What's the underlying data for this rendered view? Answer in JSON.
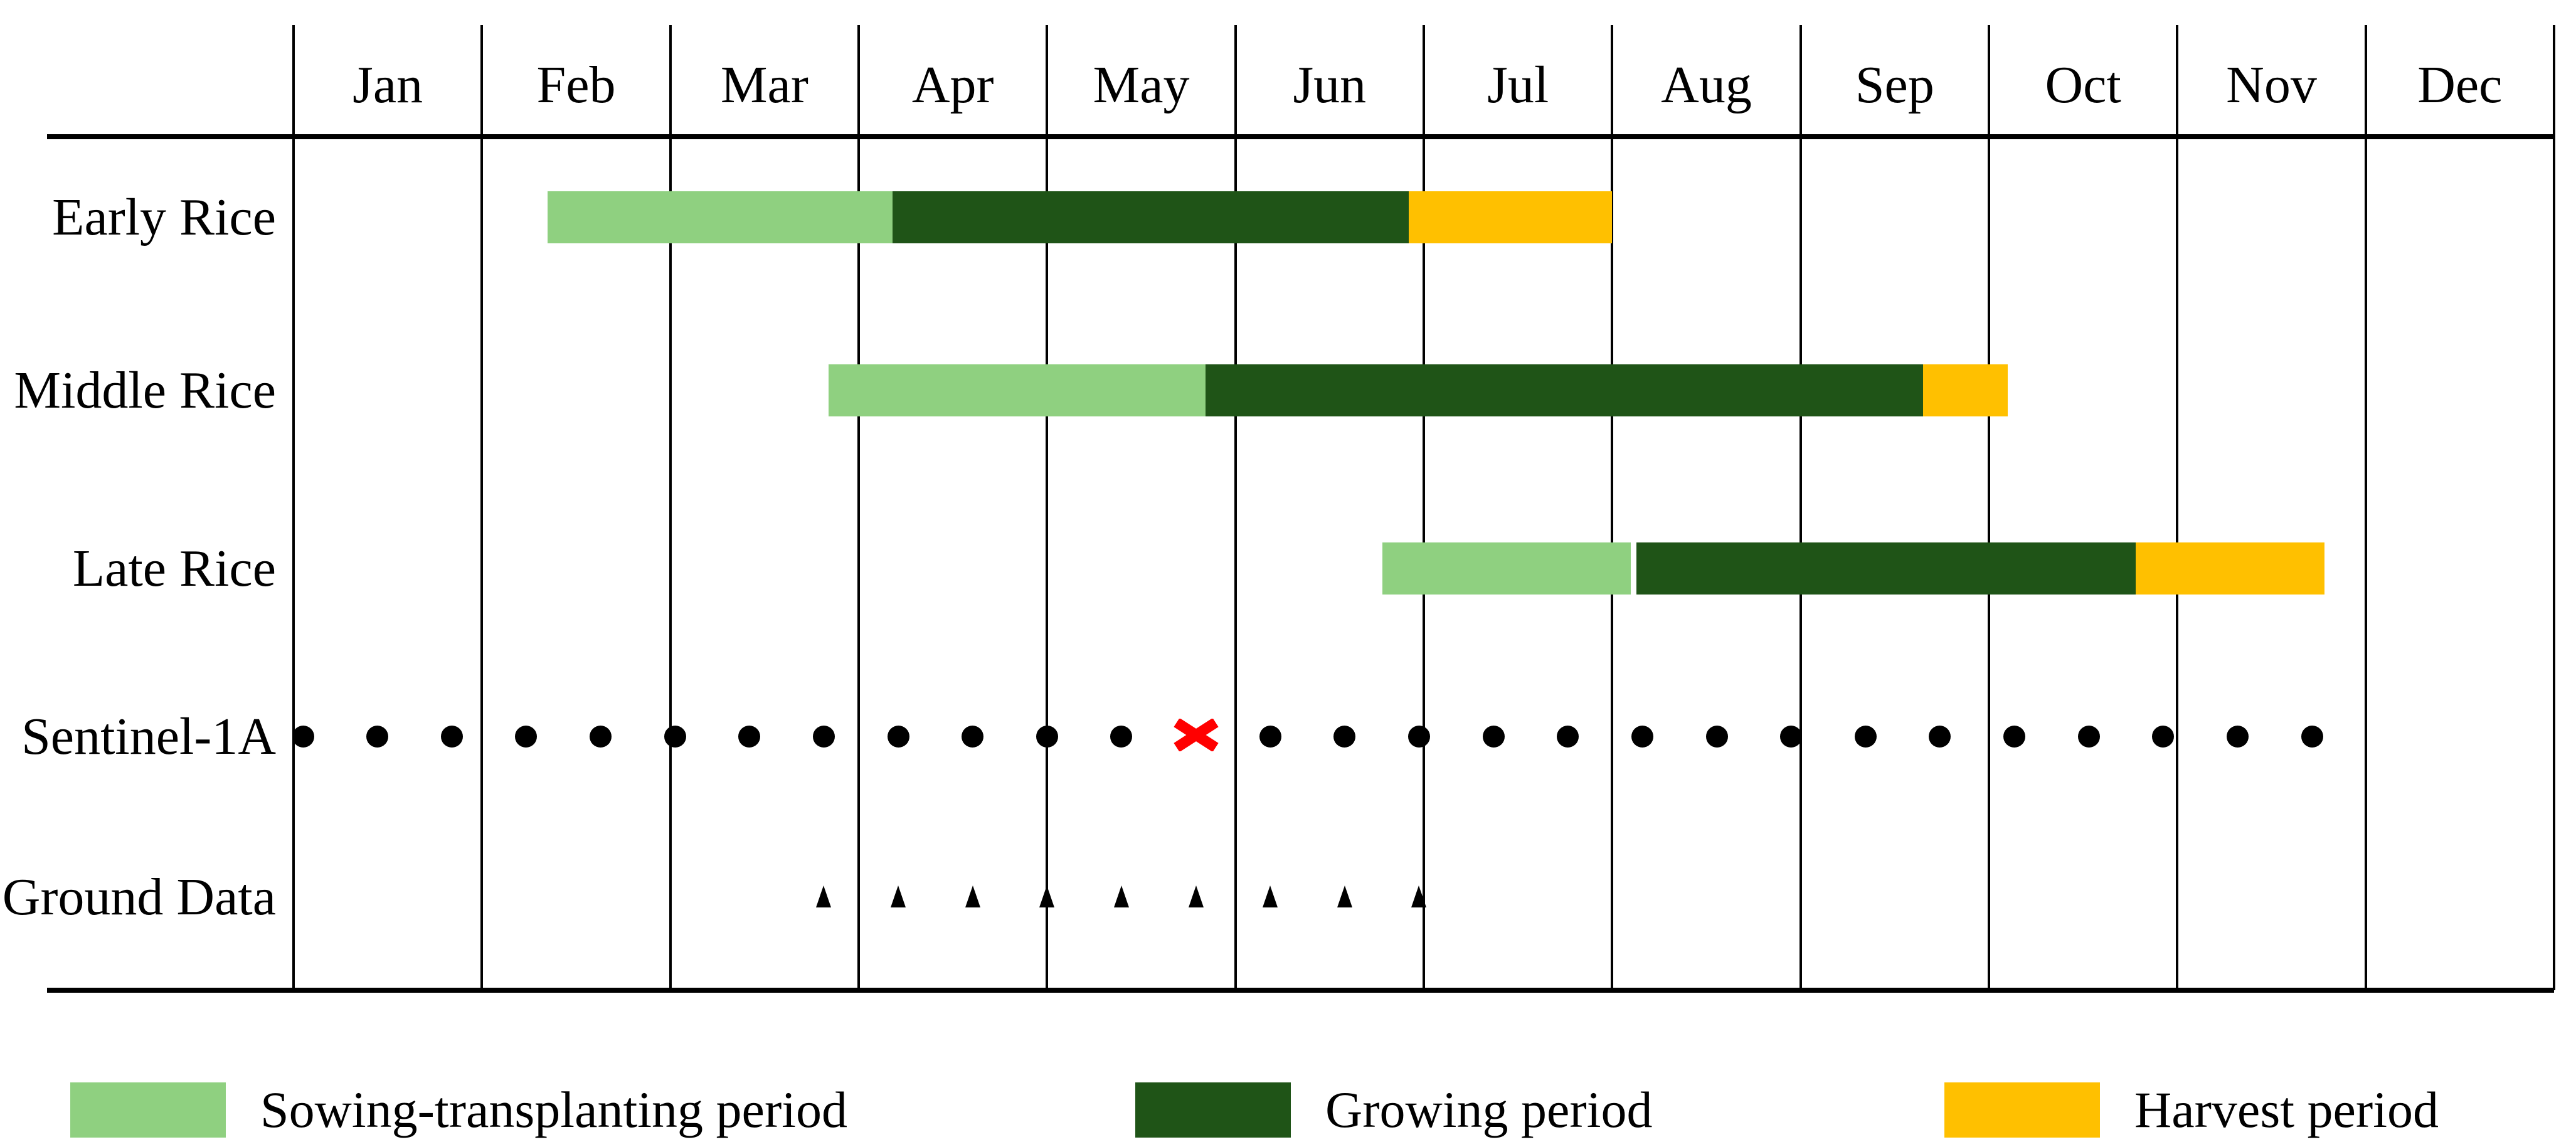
{
  "figure": {
    "background": "#FFFFFF",
    "text_color": "#000000"
  },
  "colors": {
    "sowing": "#8FD080",
    "growing": "#1F5417",
    "harvest": "#FFC000",
    "marker": "#000000",
    "missing": "#FF0000",
    "line": "#000000"
  },
  "chart_data": {
    "type": "bar",
    "variant": "gantt-crop-calendar",
    "title": "",
    "x_axis": {
      "unit": "months",
      "range": [
        0,
        12
      ],
      "tick_labels": [
        "Jan",
        "Feb",
        "Mar",
        "Apr",
        "May",
        "Jun",
        "Jul",
        "Aug",
        "Sep",
        "Oct",
        "Nov",
        "Dec"
      ],
      "grid": true
    },
    "rows": [
      {
        "label": "Early Rice",
        "kind": "periods",
        "segments": [
          {
            "period": "Sowing-transplanting period",
            "color_key": "sowing",
            "start": 1.35,
            "end": 3.18
          },
          {
            "period": "Growing period",
            "color_key": "growing",
            "start": 3.18,
            "end": 5.92
          },
          {
            "period": "Harvest period",
            "color_key": "harvest",
            "start": 5.92,
            "end": 7.0
          }
        ]
      },
      {
        "label": "Middle Rice",
        "kind": "periods",
        "segments": [
          {
            "period": "Sowing-transplanting period",
            "color_key": "sowing",
            "start": 2.84,
            "end": 4.84
          },
          {
            "period": "Growing period",
            "color_key": "growing",
            "start": 4.84,
            "end": 8.65
          },
          {
            "period": "Harvest period",
            "color_key": "harvest",
            "start": 8.65,
            "end": 9.1
          }
        ]
      },
      {
        "label": "Late Rice",
        "kind": "periods",
        "segments": [
          {
            "period": "Sowing-transplanting period",
            "color_key": "sowing",
            "start": 5.78,
            "end": 7.1
          },
          {
            "period": "Growing period",
            "color_key": "growing",
            "start": 7.13,
            "end": 9.78
          },
          {
            "period": "Harvest period",
            "color_key": "harvest",
            "start": 9.78,
            "end": 10.78
          }
        ]
      },
      {
        "label": "Sentinel-1A",
        "kind": "markers",
        "marker": "dot",
        "start": 0.05,
        "step": 0.395,
        "count": 28,
        "missing_index": 12,
        "missing_marker": "red-x"
      },
      {
        "label": "Ground Data",
        "kind": "markers",
        "marker": "triangle",
        "start": 2.815,
        "step": 0.395,
        "count": 9
      }
    ],
    "legend": [
      {
        "label": "Sowing-transplanting period",
        "color_key": "sowing"
      },
      {
        "label": "Growing period",
        "color_key": "growing"
      },
      {
        "label": "Harvest period",
        "color_key": "harvest"
      }
    ],
    "legend_position": "bottom"
  }
}
